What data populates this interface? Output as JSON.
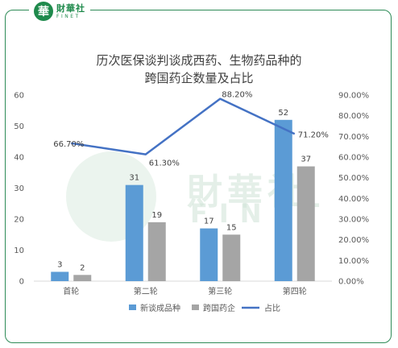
{
  "brand": {
    "name": "財華社",
    "sub": "FINET",
    "mark": "華"
  },
  "watermark": {
    "cn": "財華社",
    "en": "FINET"
  },
  "chart_data": {
    "type": "bar",
    "title_line1": "历次医保谈判谈成西药、生物药品种的",
    "title_line2": "跨国药企数量及占比",
    "categories": [
      "首轮",
      "第二轮",
      "第三轮",
      "第四轮"
    ],
    "series": [
      {
        "name": "新谈成品种",
        "type": "bar",
        "axis": "left",
        "color": "#5b9bd5",
        "values": [
          3,
          31,
          17,
          52
        ]
      },
      {
        "name": "跨国药企",
        "type": "bar",
        "axis": "left",
        "color": "#a5a5a5",
        "values": [
          2,
          19,
          15,
          37
        ]
      },
      {
        "name": "占比",
        "type": "line",
        "axis": "right",
        "color": "#4472c4",
        "values": [
          66.7,
          61.3,
          88.2,
          71.2
        ],
        "labels": [
          "66.70%",
          "61.30%",
          "88.20%",
          "71.20%"
        ]
      }
    ],
    "y_left": {
      "min": 0,
      "max": 60,
      "ticks": [
        "0",
        "10",
        "20",
        "30",
        "40",
        "50",
        "60"
      ]
    },
    "y_right": {
      "min": 0,
      "max": 90,
      "ticks": [
        "0.00%",
        "10.00%",
        "20.00%",
        "30.00%",
        "40.00%",
        "50.00%",
        "60.00%",
        "70.00%",
        "80.00%",
        "90.00%"
      ]
    },
    "legend_position": "bottom",
    "grid": false
  }
}
